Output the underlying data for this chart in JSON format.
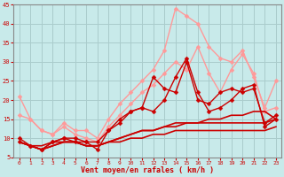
{
  "xlabel": "Vent moyen/en rafales ( km/h )",
  "xlim": [
    -0.5,
    23.5
  ],
  "ylim": [
    5,
    45
  ],
  "yticks": [
    5,
    10,
    15,
    20,
    25,
    30,
    35,
    40,
    45
  ],
  "xticks": [
    0,
    1,
    2,
    3,
    4,
    5,
    6,
    7,
    8,
    9,
    10,
    11,
    12,
    13,
    14,
    15,
    16,
    17,
    18,
    19,
    20,
    21,
    22,
    23
  ],
  "background_color": "#c8eaea",
  "grid_color": "#aacccc",
  "series": [
    {
      "x": [
        0,
        1,
        2,
        3,
        4,
        5,
        6,
        7,
        8,
        9,
        10,
        11,
        12,
        13,
        14,
        15,
        16,
        17,
        18,
        19,
        20,
        21,
        22,
        23
      ],
      "y": [
        21,
        15,
        12,
        11,
        14,
        12,
        12,
        10,
        15,
        19,
        22,
        25,
        28,
        33,
        44,
        42,
        40,
        34,
        31,
        30,
        33,
        26,
        18,
        25
      ],
      "color": "#ff9999",
      "lw": 1.0,
      "marker": "D",
      "ms": 2.5
    },
    {
      "x": [
        0,
        1,
        2,
        3,
        4,
        5,
        6,
        7,
        8,
        9,
        10,
        11,
        12,
        13,
        14,
        15,
        16,
        17,
        18,
        19,
        20,
        21,
        22,
        23
      ],
      "y": [
        16,
        15,
        12,
        11,
        13,
        11,
        10,
        9,
        13,
        16,
        19,
        22,
        24,
        27,
        30,
        28,
        34,
        27,
        22,
        28,
        32,
        27,
        17,
        18
      ],
      "color": "#ff9999",
      "lw": 1.0,
      "marker": "D",
      "ms": 2.5
    },
    {
      "x": [
        0,
        1,
        2,
        3,
        4,
        5,
        6,
        7,
        8,
        9,
        10,
        11,
        12,
        13,
        14,
        15,
        16,
        17,
        18,
        19,
        20,
        21,
        22,
        23
      ],
      "y": [
        10,
        8,
        7,
        9,
        10,
        9,
        9,
        7,
        12,
        15,
        17,
        18,
        26,
        23,
        22,
        30,
        20,
        19,
        22,
        23,
        22,
        23,
        14,
        16
      ],
      "color": "#cc0000",
      "lw": 1.0,
      "marker": "D",
      "ms": 2.5
    },
    {
      "x": [
        0,
        1,
        2,
        3,
        4,
        5,
        6,
        7,
        8,
        9,
        10,
        11,
        12,
        13,
        14,
        15,
        16,
        17,
        18,
        19,
        20,
        21,
        22,
        23
      ],
      "y": [
        9,
        8,
        7,
        9,
        10,
        10,
        9,
        9,
        12,
        14,
        17,
        18,
        17,
        20,
        26,
        31,
        22,
        17,
        18,
        20,
        23,
        24,
        13,
        15
      ],
      "color": "#cc0000",
      "lw": 1.0,
      "marker": "D",
      "ms": 2.5
    },
    {
      "x": [
        0,
        1,
        2,
        3,
        4,
        5,
        6,
        7,
        8,
        9,
        10,
        11,
        12,
        13,
        14,
        15,
        16,
        17,
        18,
        19,
        20,
        21,
        22,
        23
      ],
      "y": [
        9,
        8,
        8,
        9,
        9,
        9,
        8,
        8,
        9,
        10,
        11,
        12,
        12,
        13,
        14,
        14,
        14,
        15,
        15,
        16,
        16,
        17,
        17,
        15
      ],
      "color": "#cc0000",
      "lw": 1.2,
      "marker": null,
      "ms": 0
    },
    {
      "x": [
        0,
        1,
        2,
        3,
        4,
        5,
        6,
        7,
        8,
        9,
        10,
        11,
        12,
        13,
        14,
        15,
        16,
        17,
        18,
        19,
        20,
        21,
        22,
        23
      ],
      "y": [
        9,
        8,
        7,
        8,
        9,
        9,
        8,
        8,
        9,
        10,
        11,
        12,
        12,
        13,
        13,
        14,
        14,
        14,
        14,
        14,
        14,
        14,
        14,
        15
      ],
      "color": "#cc0000",
      "lw": 1.2,
      "marker": null,
      "ms": 0
    },
    {
      "x": [
        0,
        1,
        2,
        3,
        4,
        5,
        6,
        7,
        8,
        9,
        10,
        11,
        12,
        13,
        14,
        15,
        16,
        17,
        18,
        19,
        20,
        21,
        22,
        23
      ],
      "y": [
        9,
        8,
        7,
        8,
        9,
        9,
        8,
        8,
        9,
        9,
        10,
        10,
        11,
        11,
        12,
        12,
        12,
        12,
        12,
        12,
        12,
        12,
        12,
        13
      ],
      "color": "#cc0000",
      "lw": 1.2,
      "marker": null,
      "ms": 0
    }
  ]
}
